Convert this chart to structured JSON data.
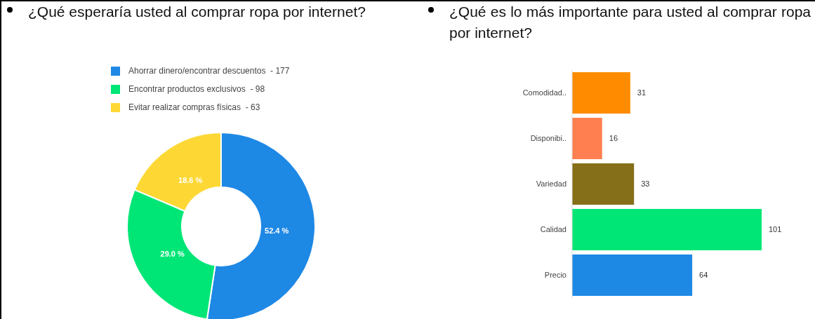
{
  "chart_data": [
    {
      "type": "donut",
      "title": "¿Qué esperaría usted al comprar ropa por internet?",
      "categories": [
        "Ahorrar dinero/encontrar descuentos  - 177",
        "Encontrar productos exclusivos  - 98",
        "Evitar realizar compras físicas  - 63"
      ],
      "values": [
        52.4,
        29.0,
        18.6
      ],
      "colors": [
        "#1e88e5",
        "#00e676",
        "#fdd835"
      ],
      "value_labels": [
        "52.4 %",
        "29.0 %",
        "18.6 %"
      ],
      "legend": "top"
    },
    {
      "type": "bar",
      "orientation": "horizontal",
      "title": "¿Qué es lo más importante para usted al comprar ropa por internet?",
      "categories": [
        "Comodidad..",
        "Disponibi..",
        "Variedad",
        "Calidad",
        "Precio"
      ],
      "values": [
        31,
        16,
        33,
        101,
        64
      ],
      "colors": [
        "#ff8c00",
        "#ff7f50",
        "#857019",
        "#00e676",
        "#1e88e5"
      ],
      "data_labels": true
    }
  ]
}
